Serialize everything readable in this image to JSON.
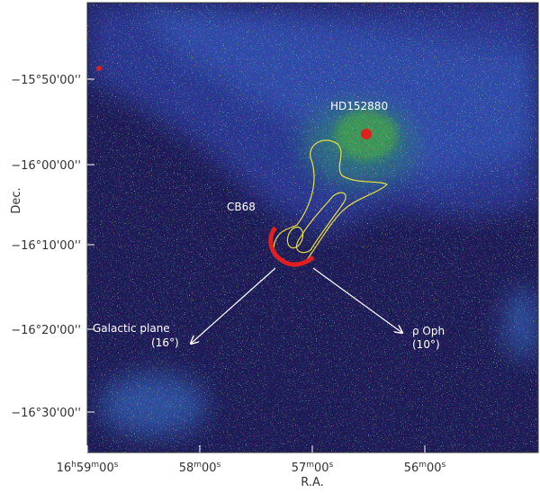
{
  "figure": {
    "y_axis": {
      "label": "Dec.",
      "ticks": [
        "−15°50'00''",
        "−16°00'00''",
        "−16°10'00''",
        "−16°20'00''",
        "−16°30'00''"
      ]
    },
    "x_axis": {
      "label": "R.A.",
      "ticks": [
        [
          "16",
          "h",
          "59",
          "m",
          "00",
          "s"
        ],
        [
          "58",
          "m",
          "00",
          "s"
        ],
        [
          "57",
          "m",
          "00",
          "s"
        ],
        [
          "56",
          "m",
          "00",
          "s"
        ]
      ]
    },
    "annotations": {
      "star": "HD152880",
      "cloud": "CB68",
      "galactic_plane": "Galactic plane",
      "galactic_plane_angle": "(16°)",
      "oph": "ρ Oph",
      "oph_angle": "(10°)"
    }
  }
}
